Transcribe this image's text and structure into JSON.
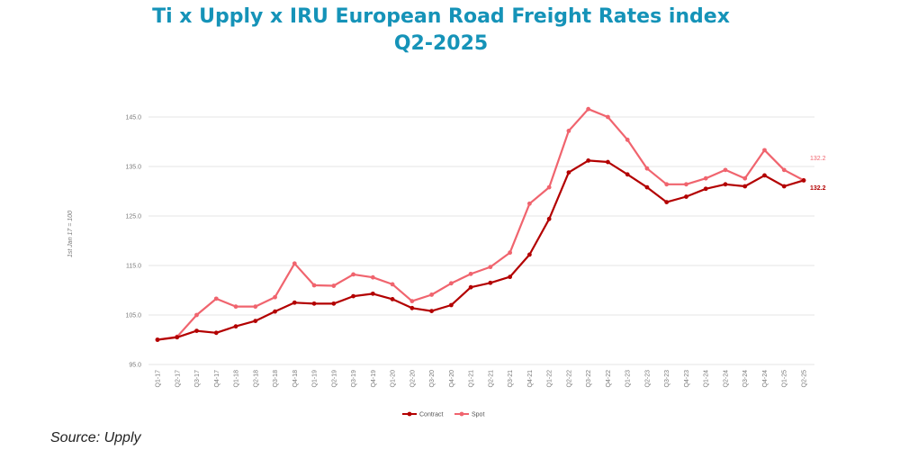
{
  "header": {
    "title_line1": "Ti x Upply x IRU European Road Freight Rates index",
    "title_line2": "Q2-2025"
  },
  "footer": {
    "source": "Source: Upply"
  },
  "colors": {
    "title": "#1593b8",
    "contract": "#b30000",
    "spot": "#f0646e",
    "grid": "#e6e6e6"
  },
  "chart_data": {
    "type": "line",
    "title": "Ti x Upply x IRU European Road Freight Rates index Q2-2025",
    "xlabel": "",
    "ylabel": "1st Jan 17 = 100",
    "ylim": [
      95,
      145
    ],
    "yticks": [
      "95.0",
      "105.0",
      "115.0",
      "125.0",
      "135.0",
      "145.0"
    ],
    "grid": true,
    "legend_position": "bottom-center",
    "categories": [
      "Q1-17",
      "Q2-17",
      "Q3-17",
      "Q4-17",
      "Q1-18",
      "Q2-18",
      "Q3-18",
      "Q4-18",
      "Q1-19",
      "Q2-19",
      "Q3-19",
      "Q4-19",
      "Q1-20",
      "Q2-20",
      "Q3-20",
      "Q4-20",
      "Q1-21",
      "Q2-21",
      "Q3-21",
      "Q4-21",
      "Q1-22",
      "Q2-22",
      "Q3-22",
      "Q4-22",
      "Q1-23",
      "Q2-23",
      "Q3-23",
      "Q4-23",
      "Q1-24",
      "Q2-24",
      "Q3-24",
      "Q4-24",
      "Q1-25",
      "Q2-25"
    ],
    "series": [
      {
        "name": "Contract",
        "values": [
          100.0,
          100.5,
          101.8,
          101.4,
          102.7,
          103.8,
          105.7,
          107.5,
          107.3,
          107.3,
          108.8,
          109.3,
          108.2,
          106.4,
          105.8,
          107.0,
          110.6,
          111.5,
          112.7,
          117.2,
          124.4,
          133.8,
          136.2,
          135.9,
          133.4,
          130.8,
          127.8,
          128.9,
          130.5,
          131.4,
          131.0,
          133.2,
          131.0,
          132.2
        ],
        "end_label": "132.2"
      },
      {
        "name": "Spot",
        "values": [
          100.0,
          100.6,
          105.0,
          108.3,
          106.7,
          106.7,
          108.6,
          115.4,
          111.0,
          110.9,
          113.2,
          112.6,
          111.2,
          107.8,
          109.1,
          111.4,
          113.3,
          114.7,
          117.6,
          127.5,
          130.8,
          142.2,
          146.6,
          145.0,
          140.4,
          134.6,
          131.4,
          131.4,
          132.6,
          134.3,
          132.6,
          138.3,
          134.3,
          132.2
        ],
        "end_label": "132.2"
      }
    ]
  }
}
